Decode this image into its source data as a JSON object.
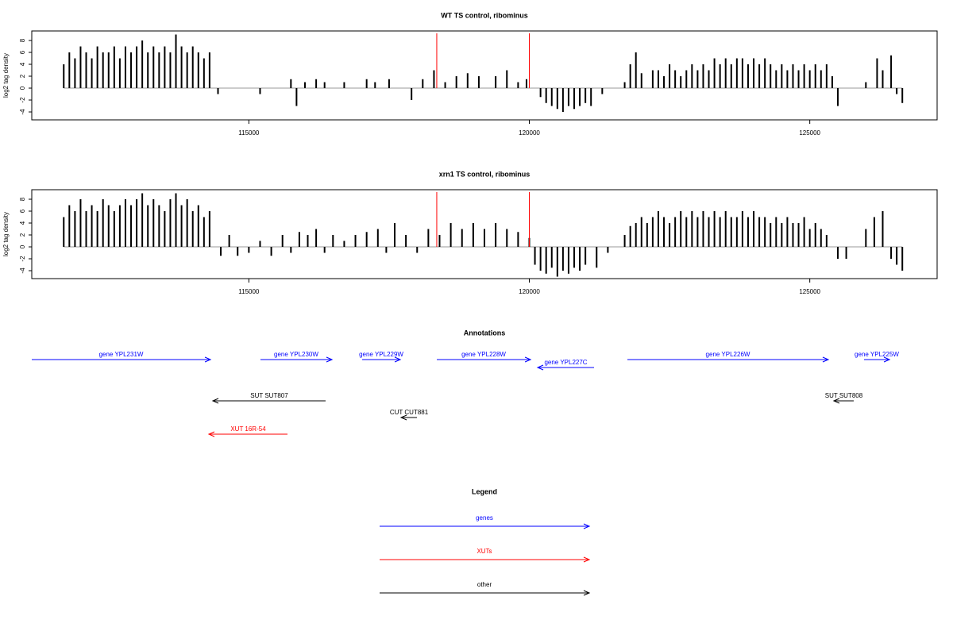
{
  "chart_data": [
    {
      "type": "bar",
      "title": "WT TS control, ribominus",
      "y_label": "log2 tag density",
      "color": "#000000",
      "xlim": [
        111130,
        127270
      ],
      "xticks": [
        115000,
        120000,
        125000
      ],
      "ylim": [
        -5.33,
        9.6
      ],
      "yticks": [
        -4,
        -2,
        0,
        2,
        4,
        6,
        8
      ],
      "markers": {
        "color": "#ff0000",
        "x": [
          118350,
          120000
        ]
      },
      "x": [
        111700,
        111800,
        111900,
        112000,
        112100,
        112200,
        112300,
        112400,
        112500,
        112600,
        112700,
        112800,
        112900,
        113000,
        113100,
        113200,
        113300,
        113400,
        113500,
        113600,
        113700,
        113800,
        113900,
        114000,
        114100,
        114200,
        114300,
        114450,
        115200,
        115750,
        115850,
        116000,
        116200,
        116350,
        116700,
        117100,
        117250,
        117500,
        117900,
        118100,
        118300,
        118500,
        118700,
        118900,
        119100,
        119400,
        119600,
        119800,
        119950,
        120200,
        120300,
        120400,
        120500,
        120600,
        120700,
        120800,
        120900,
        121000,
        121100,
        121300,
        121700,
        121800,
        121900,
        122000,
        122200,
        122300,
        122400,
        122500,
        122600,
        122700,
        122800,
        122900,
        123000,
        123100,
        123200,
        123300,
        123400,
        123500,
        123600,
        123700,
        123800,
        123900,
        124000,
        124100,
        124200,
        124300,
        124400,
        124500,
        124600,
        124700,
        124800,
        124900,
        125000,
        125100,
        125200,
        125300,
        125400,
        125500,
        126000,
        126200,
        126300,
        126450,
        126550,
        126650
      ],
      "values": [
        4,
        6,
        5,
        7,
        6,
        5,
        7,
        6,
        6,
        7,
        5,
        7,
        6,
        7,
        8,
        6,
        7,
        6,
        7,
        6,
        9,
        7,
        6,
        7,
        6,
        5,
        6,
        -1,
        -1,
        1.5,
        -3,
        1,
        1.5,
        1,
        1,
        1.5,
        1,
        1.5,
        -2,
        1.5,
        3,
        1,
        2,
        2.5,
        2,
        2,
        3,
        1,
        1.5,
        -1.5,
        -2.5,
        -3,
        -3.5,
        -4,
        -3,
        -3.5,
        -3,
        -2.5,
        -3,
        -1,
        1,
        4,
        6,
        2.5,
        3,
        3,
        2,
        4,
        3,
        2,
        3,
        4,
        3,
        4,
        3,
        5,
        4,
        5,
        4,
        5,
        5,
        4,
        5,
        4,
        5,
        4,
        3,
        4,
        3,
        4,
        3,
        4,
        3,
        4,
        3,
        4,
        2,
        -3,
        1,
        5,
        3,
        5.5,
        -1,
        -2.5
      ]
    },
    {
      "type": "bar",
      "title": "xrn1 TS control, ribominus",
      "y_label": "log2 tag density",
      "color": "#000000",
      "xlim": [
        111130,
        127270
      ],
      "xticks": [
        115000,
        120000,
        125000
      ],
      "ylim": [
        -5.33,
        9.6
      ],
      "yticks": [
        -4,
        -2,
        0,
        2,
        4,
        6,
        8
      ],
      "markers": {
        "color": "#ff0000",
        "x": [
          118350,
          120000
        ]
      },
      "x": [
        111700,
        111800,
        111900,
        112000,
        112100,
        112200,
        112300,
        112400,
        112500,
        112600,
        112700,
        112800,
        112900,
        113000,
        113100,
        113200,
        113300,
        113400,
        113500,
        113600,
        113700,
        113800,
        113900,
        114000,
        114100,
        114200,
        114300,
        114500,
        114650,
        114800,
        115000,
        115200,
        115400,
        115600,
        115750,
        115900,
        116050,
        116200,
        116350,
        116500,
        116700,
        116900,
        117100,
        117300,
        117450,
        117600,
        117800,
        118000,
        118200,
        118400,
        118600,
        118800,
        119000,
        119200,
        119400,
        119600,
        119800,
        120000,
        120100,
        120200,
        120300,
        120400,
        120500,
        120600,
        120700,
        120800,
        120900,
        121000,
        121200,
        121400,
        121700,
        121800,
        121900,
        122000,
        122100,
        122200,
        122300,
        122400,
        122500,
        122600,
        122700,
        122800,
        122900,
        123000,
        123100,
        123200,
        123300,
        123400,
        123500,
        123600,
        123700,
        123800,
        123900,
        124000,
        124100,
        124200,
        124300,
        124400,
        124500,
        124600,
        124700,
        124800,
        124900,
        125000,
        125100,
        125200,
        125300,
        125500,
        125650,
        126000,
        126150,
        126300,
        126450,
        126550,
        126650
      ],
      "values": [
        5,
        7,
        6,
        8,
        6,
        7,
        6,
        8,
        7,
        6,
        7,
        8,
        7,
        8,
        9,
        7,
        8,
        7,
        6,
        8,
        9,
        7,
        8,
        6,
        7,
        5,
        6,
        -1.5,
        2,
        -1.5,
        -1,
        1,
        -1.5,
        2,
        -1,
        2.5,
        2,
        3,
        -1,
        2,
        1,
        2,
        2.5,
        3,
        -1,
        4,
        2,
        -1,
        3,
        2,
        4,
        3,
        4,
        3,
        4,
        3,
        2.5,
        1.5,
        -3,
        -4,
        -4.5,
        -3.5,
        -5,
        -4,
        -4.5,
        -3.5,
        -4,
        -3,
        -3.5,
        -1,
        2,
        3.5,
        4,
        5,
        4,
        5,
        6,
        5,
        4,
        5,
        6,
        5,
        6,
        5,
        6,
        5,
        6,
        5,
        6,
        5,
        5,
        6,
        5,
        6,
        5,
        5,
        4,
        5,
        4,
        5,
        4,
        4,
        5,
        3,
        4,
        3,
        2,
        -2,
        -2,
        3,
        5,
        6,
        -2,
        -3,
        -4
      ]
    }
  ],
  "annotations": {
    "title": "Annotations",
    "features": [
      {
        "label": "gene YPL231W",
        "color": "#0000ff",
        "from": 111130,
        "to": 114316
      },
      {
        "label": "gene YPL230W",
        "color": "#0000ff",
        "from": 115207,
        "to": 116482
      },
      {
        "label": "gene YPL229W",
        "color": "#0000ff",
        "from": 117020,
        "to": 117700
      },
      {
        "label": "gene YPL228W",
        "color": "#0000ff",
        "from": 118351,
        "to": 120022
      },
      {
        "label": "gene YPL227C",
        "color": "#0000ff",
        "from": 121154,
        "to": 120149
      },
      {
        "label": "gene YPL226W",
        "color": "#0000ff",
        "from": 121749,
        "to": 125330
      },
      {
        "label": "gene YPL225W",
        "color": "#0000ff",
        "from": 125967,
        "to": 126421
      },
      {
        "label": "SUT SUT807",
        "color": "#000000",
        "from": 116368,
        "to": 114358
      },
      {
        "label": "SUT SUT808",
        "color": "#000000",
        "from": 125783,
        "to": 125429
      },
      {
        "label": "CUT CUT881",
        "color": "#000000",
        "from": 117997,
        "to": 117714
      },
      {
        "label": "XUT 16R-54",
        "color": "#ff0000",
        "from": 115689,
        "to": 114287
      }
    ]
  },
  "legend": {
    "title": "Legend",
    "entries": [
      {
        "label": "genes",
        "color": "#0000ff"
      },
      {
        "label": "XUTs",
        "color": "#ff0000"
      },
      {
        "label": "other",
        "color": "#000000"
      }
    ]
  }
}
